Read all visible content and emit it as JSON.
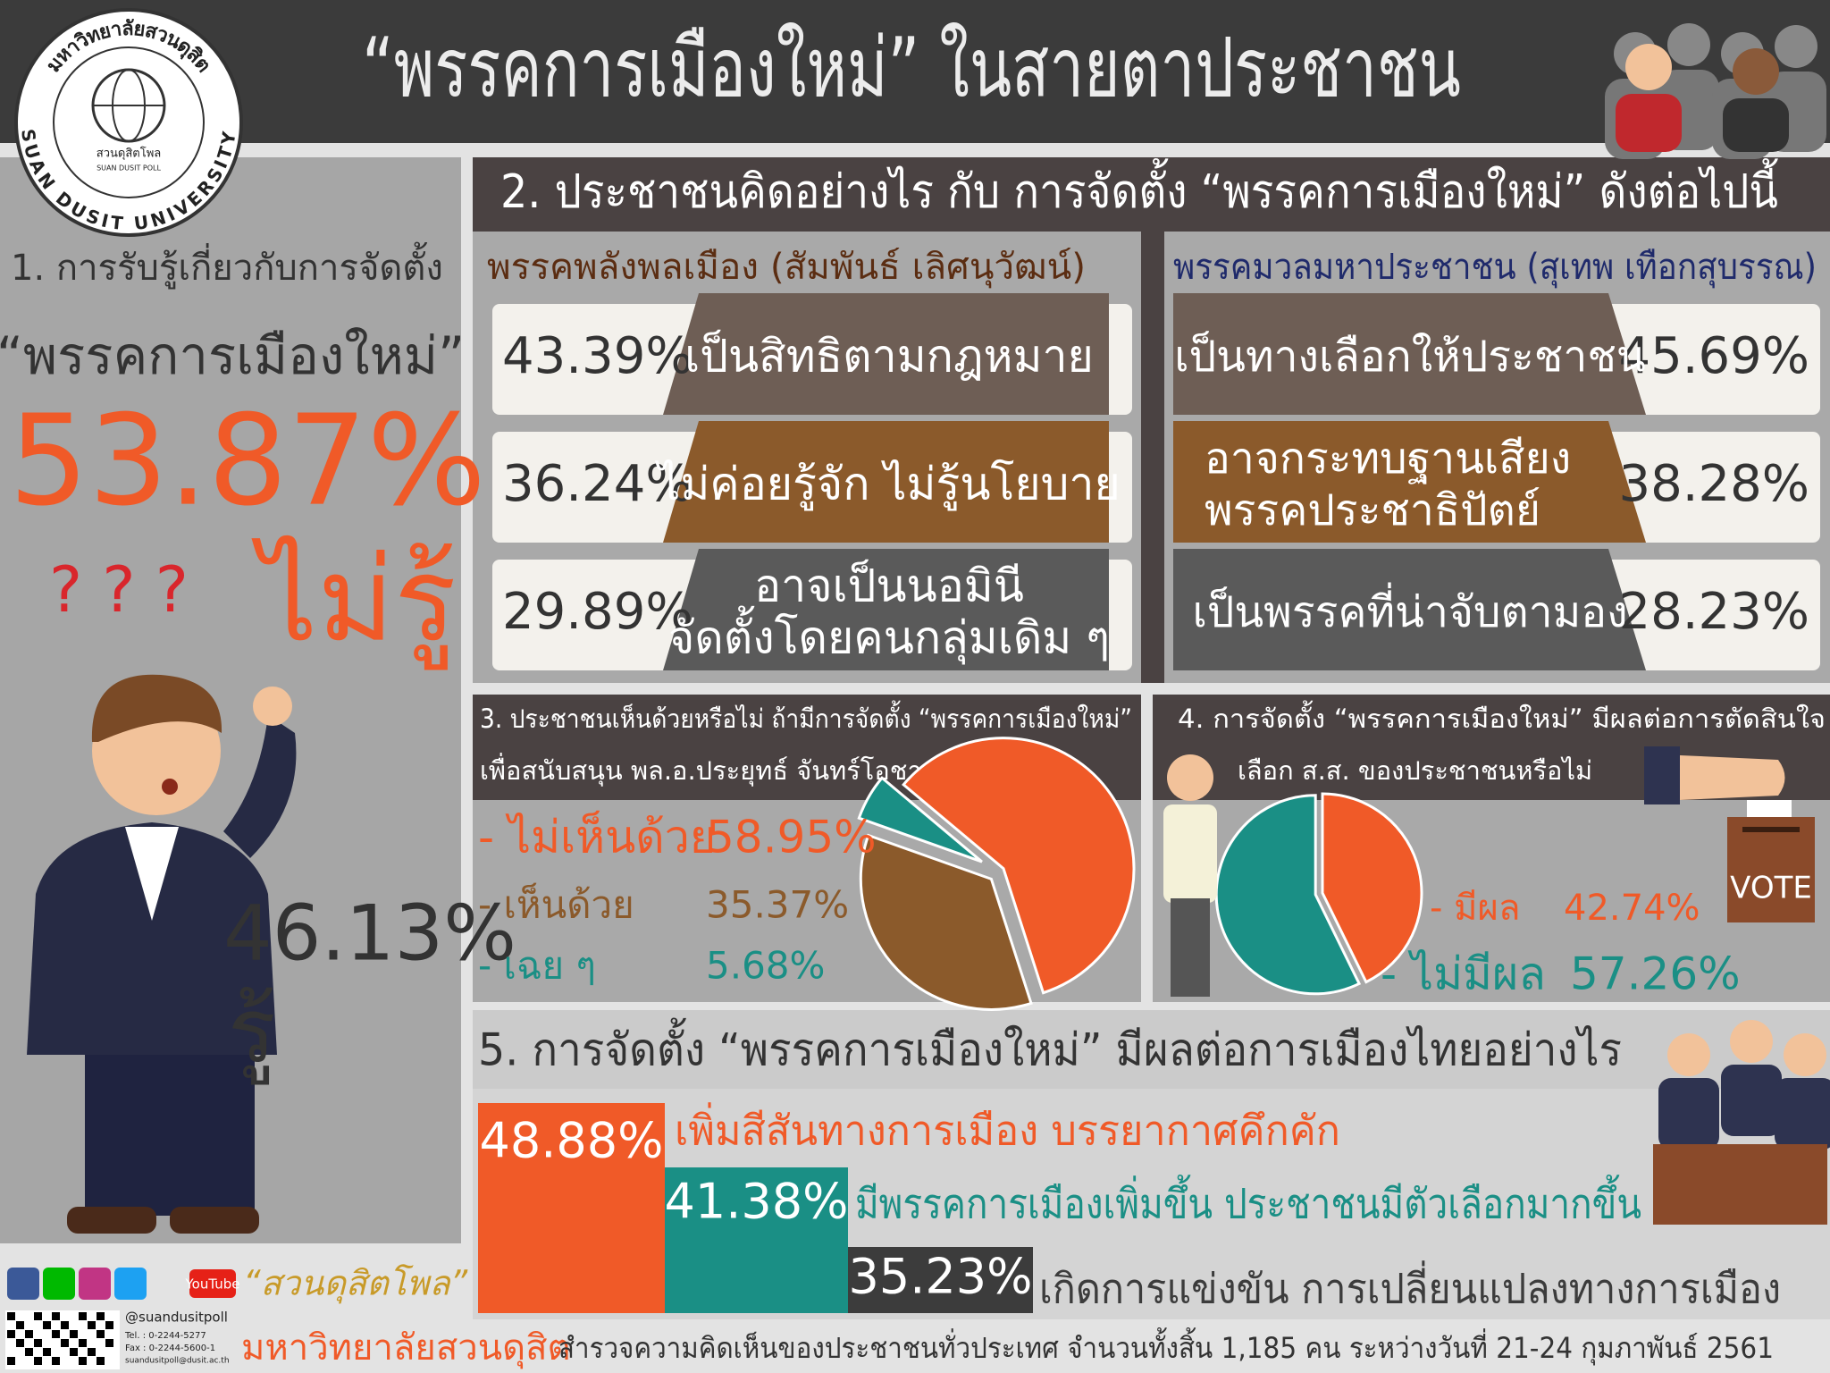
{
  "header": {
    "title": "“พรรคการเมืองใหม่” ในสายตาประชาชน"
  },
  "logo": {
    "top_text": "มหาวิทยาลัยสวนดุสิต",
    "bottom_text": "SUAN DUSIT UNIVERSITY",
    "poll_th": "สวนดุสิตโพล",
    "poll_en": "SUAN DUSIT POLL"
  },
  "section1": {
    "title": "1. การรับรู้เกี่ยวกับการจัดตั้ง",
    "subject": "“พรรคการเมืองใหม่”",
    "unaware_pct": "53.87%",
    "question_marks": "? ? ?",
    "unaware_label": "ไม่รู้",
    "aware_pct": "46.13%",
    "aware_label": "รู้"
  },
  "section2": {
    "title": "2. ประชาชนคิดอย่างไร กับ การจัดตั้ง “พรรคการเมืองใหม่” ดังต่อไปนี้",
    "parties": [
      {
        "name": "พรรคพลังพลเมือง (สัมพันธ์ เลิศนุวัฒน์)",
        "rows": [
          {
            "pct": "43.39%",
            "lines": [
              "เป็นสิทธิตามกฎหมาย"
            ]
          },
          {
            "pct": "36.24%",
            "lines": [
              "ไม่ค่อยรู้จัก ไม่รู้นโยบาย"
            ]
          },
          {
            "pct": "29.89%",
            "lines": [
              "อาจเป็นนอมินี",
              "จัดตั้งโดยคนกลุ่มเดิม ๆ"
            ]
          }
        ]
      },
      {
        "name": "พรรคมวลมหาประชาชน (สุเทพ เทือกสุบรรณ)",
        "rows": [
          {
            "pct": "45.69%",
            "lines": [
              "เป็นทางเลือกให้ประชาชน"
            ]
          },
          {
            "pct": "38.28%",
            "lines": [
              "อาจกระทบฐานเสียง",
              "พรรคประชาธิปัตย์"
            ]
          },
          {
            "pct": "28.23%",
            "lines": [
              "เป็นพรรคที่น่าจับตามอง"
            ]
          }
        ]
      }
    ]
  },
  "section3": {
    "title_lines": [
      "3. ประชาชนเห็นด้วยหรือไม่ ถ้ามีการจัดตั้ง “พรรคการเมืองใหม่”",
      "เพื่อสนับสนุน พล.อ.ประยุทธ์ จันทร์โอชา"
    ],
    "items": [
      {
        "label": "- ไม่เห็นด้วย",
        "value": 58.95,
        "value_label": "58.95%"
      },
      {
        "label": "- เห็นด้วย",
        "value": 35.37,
        "value_label": "35.37%"
      },
      {
        "label": "- เฉย ๆ",
        "value": 5.68,
        "value_label": "5.68%"
      }
    ]
  },
  "section4": {
    "title_lines": [
      "4. การจัดตั้ง “พรรคการเมืองใหม่” มีผลต่อการตัดสินใจ",
      "เลือก ส.ส. ของประชาชนหรือไม่"
    ],
    "items": [
      {
        "label": "- มีผล",
        "value": 42.74,
        "value_label": "42.74%"
      },
      {
        "label": "- ไม่มีผล",
        "value": 57.26,
        "value_label": "57.26%"
      }
    ],
    "vote": "VOTE"
  },
  "section5": {
    "title": "5. การจัดตั้ง “พรรคการเมืองใหม่” มีผลต่อการเมืองไทยอย่างไร",
    "items": [
      {
        "pct": "48.88%",
        "label": "เพิ่มสีสันทางการเมือง บรรยากาศคึกคัก"
      },
      {
        "pct": "41.38%",
        "label": "มีพรรคการเมืองเพิ่มขึ้น ประชาชนมีตัวเลือกมากขึ้น"
      },
      {
        "pct": "35.23%",
        "label": "เกิดการแข่งขัน การเปลี่ยนแปลงทางการเมือง"
      }
    ]
  },
  "footer": {
    "youtube": "YouTube",
    "brand": "“สวนดุสิตโพล”",
    "handle": "@suandusitpoll",
    "tel": "Tel. : 0-2244-5277",
    "fax": "Fax : 0-2244-5600-1",
    "email": "suandusitpoll@dusit.ac.th",
    "university": "มหาวิทยาลัยสวนดุสิต",
    "survey": "สำรวจความคิดเห็นของประชาชนทั่วประเทศ จำนวนทั้งสิ้น 1,185 คน ระหว่างวันที่ 21-24 กุมภาพันธ์ 2561"
  }
}
